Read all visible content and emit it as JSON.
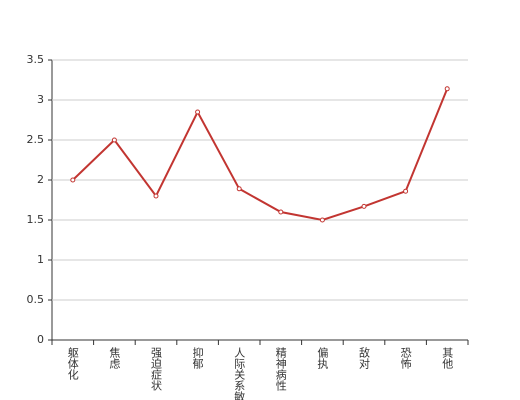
{
  "chart_data": {
    "type": "line",
    "categories": [
      "躯体化",
      "焦虑",
      "强迫症状",
      "抑郁",
      "人际关系敏感",
      "精神病性",
      "偏执",
      "敌对",
      "恐怖",
      "其他"
    ],
    "values": [
      2.0,
      2.5,
      1.8,
      2.85,
      1.89,
      1.6,
      1.5,
      1.67,
      1.86,
      3.14
    ],
    "color": "#c23531",
    "ylim": [
      0,
      3.5
    ],
    "yticks": [
      0,
      0.5,
      1,
      1.5,
      2,
      2.5,
      3,
      3.5
    ],
    "grid": true
  }
}
